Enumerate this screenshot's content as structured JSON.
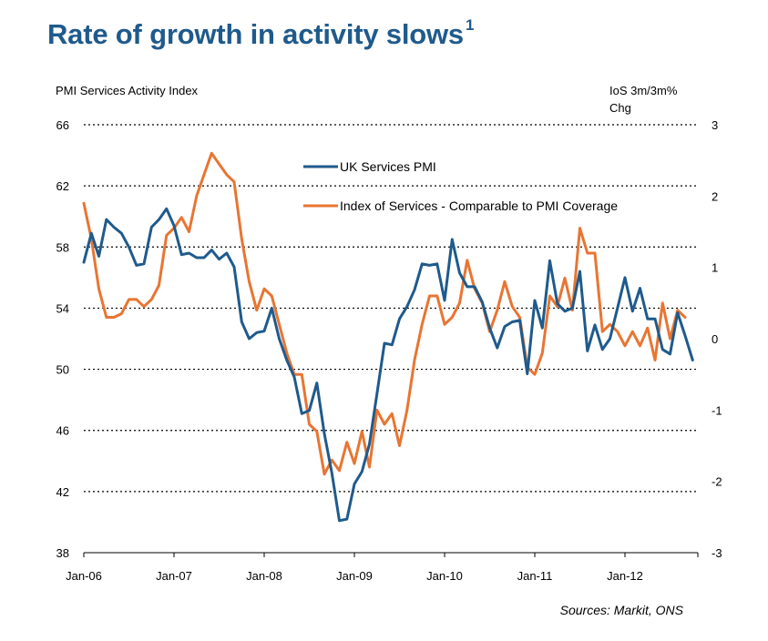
{
  "title": "Rate of growth in activity slows",
  "title_footnote": "1",
  "chart_data": {
    "type": "line",
    "left_axis_label": "PMI Services Activity Index",
    "right_axis_label_line1": "IoS 3m/3m%",
    "right_axis_label_line2": "Chg",
    "source": "Sources: Markit, ONS",
    "x_tick_labels": [
      "Jan-06",
      "Jan-07",
      "Jan-08",
      "Jan-09",
      "Jan-10",
      "Jan-11",
      "Jan-12"
    ],
    "x_start": "Jan-06",
    "x_end": "Dec-12",
    "left_ylim": [
      38,
      66
    ],
    "left_ticks": [
      38,
      42,
      46,
      50,
      54,
      58,
      62,
      66
    ],
    "right_ylim": [
      -3,
      3
    ],
    "right_ticks": [
      "-3",
      "-2",
      "-1",
      "0",
      "1",
      "2",
      "3"
    ],
    "grid": "dotted horizontal",
    "legend_position": "top-right",
    "colors": {
      "uk_pmi": "#1f5a8c",
      "ios": "#e87532"
    },
    "series": [
      {
        "name": "UK Services PMI",
        "axis": "left",
        "color": "#1f5a8c",
        "values": [
          57.0,
          58.9,
          57.4,
          59.8,
          59.3,
          58.9,
          58.0,
          56.8,
          56.9,
          59.3,
          59.8,
          60.5,
          59.4,
          57.5,
          57.6,
          57.3,
          57.3,
          57.8,
          57.2,
          57.6,
          56.7,
          53.1,
          52.0,
          52.4,
          52.5,
          54.0,
          52.0,
          50.6,
          49.5,
          47.1,
          47.3,
          49.1,
          45.8,
          43.2,
          40.1,
          40.2,
          42.5,
          43.3,
          45.1,
          48.4,
          51.7,
          51.6,
          53.3,
          54.1,
          55.2,
          56.9,
          56.8,
          56.9,
          54.5,
          58.5,
          56.3,
          55.4,
          55.4,
          54.4,
          52.7,
          51.4,
          52.8,
          53.1,
          53.2,
          49.7,
          54.5,
          52.7,
          57.1,
          54.3,
          53.8,
          54.0,
          56.4,
          51.2,
          52.9,
          51.3,
          52.0,
          54.0,
          56.0,
          53.8,
          55.3,
          53.3,
          53.3,
          51.3,
          51.0,
          53.7,
          52.2,
          50.6
        ]
      },
      {
        "name": "Index of Services - Comparable to PMI Coverage",
        "axis": "right",
        "color": "#e87532",
        "values": [
          1.9,
          1.4,
          0.7,
          0.3,
          0.3,
          0.35,
          0.55,
          0.55,
          0.45,
          0.55,
          0.75,
          1.45,
          1.55,
          1.7,
          1.5,
          2.0,
          2.3,
          2.6,
          2.45,
          2.3,
          2.2,
          1.4,
          0.8,
          0.4,
          0.7,
          0.6,
          0.2,
          -0.2,
          -0.5,
          -0.5,
          -1.2,
          -1.3,
          -1.9,
          -1.7,
          -1.85,
          -1.45,
          -1.75,
          -1.3,
          -1.8,
          -1.0,
          -1.2,
          -1.05,
          -1.5,
          -1.0,
          -0.3,
          0.2,
          0.6,
          0.6,
          0.2,
          0.3,
          0.5,
          1.1,
          0.7,
          0.5,
          0.1,
          0.4,
          0.8,
          0.45,
          0.3,
          -0.4,
          -0.5,
          -0.2,
          0.6,
          0.45,
          0.85,
          0.4,
          1.55,
          1.2,
          1.2,
          0.1,
          0.2,
          0.1,
          -0.1,
          0.1,
          -0.1,
          0.15,
          -0.3,
          0.5,
          0.0,
          0.4,
          0.3
        ]
      }
    ]
  }
}
